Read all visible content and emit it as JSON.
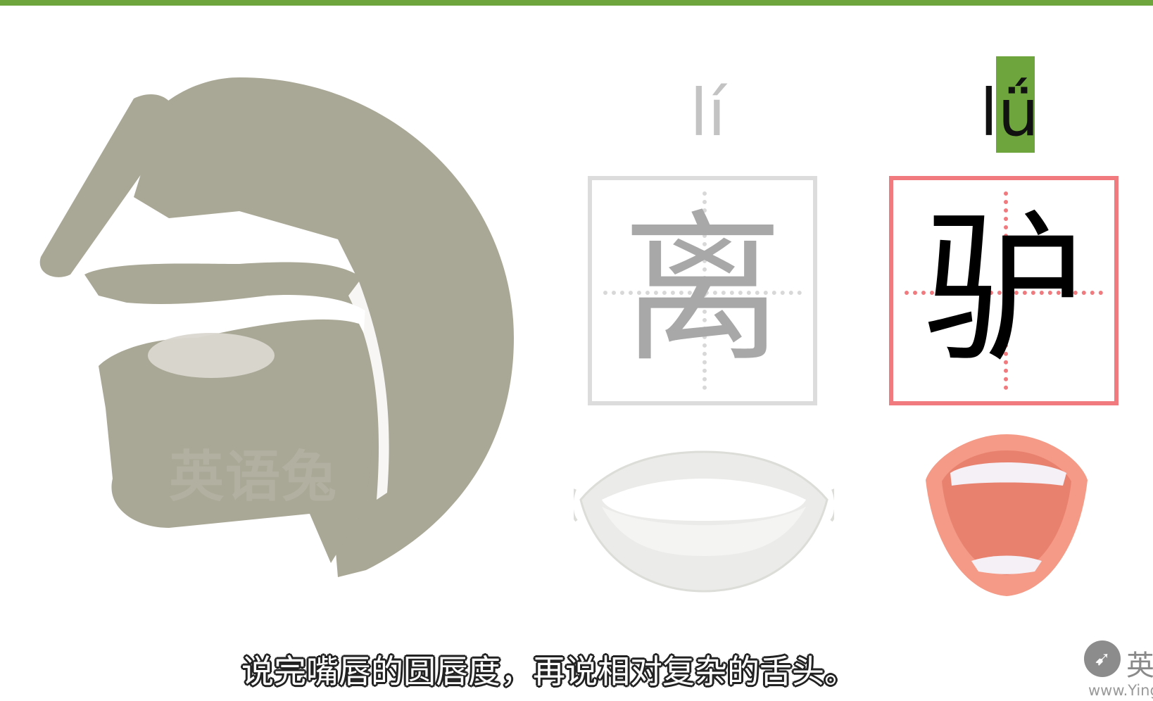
{
  "pinyin": {
    "left": "lí",
    "right_initial": "l",
    "right_final": "ǘ"
  },
  "characters": {
    "left": "离",
    "right": "驴"
  },
  "watermark": "英语兔",
  "subtitle": "说完嘴唇的圆唇度，再说相对复杂的舌头。",
  "logo": {
    "text": "英",
    "url": "www.Ying"
  },
  "colors": {
    "accent_green": "#6ea53c",
    "box_red": "#f07a7e",
    "head_gray": "#a9a795"
  }
}
